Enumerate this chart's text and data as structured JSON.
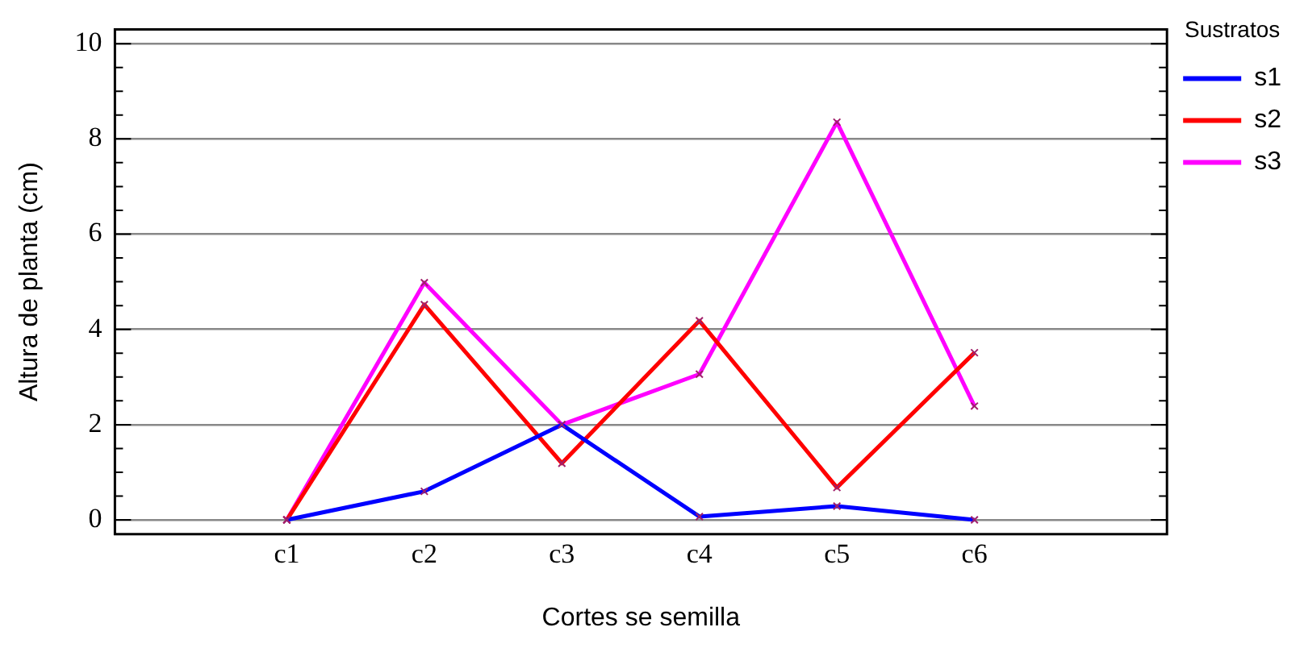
{
  "chart_data": {
    "type": "line",
    "xlabel": "Cortes se semilla",
    "ylabel": "Altura de planta (cm)",
    "legend_title": "Sustratos",
    "categories": [
      "c1",
      "c2",
      "c3",
      "c4",
      "c5",
      "c6"
    ],
    "series": [
      {
        "name": "s1",
        "color": "#0000ff",
        "values": [
          0,
          0.6,
          2.0,
          0.07,
          0.29,
          0
        ]
      },
      {
        "name": "s2",
        "color": "#ff0000",
        "values": [
          0,
          4.52,
          1.19,
          4.18,
          0.68,
          3.51
        ]
      },
      {
        "name": "s3",
        "color": "#ff00ff",
        "values": [
          0,
          4.98,
          2.0,
          3.06,
          8.35,
          2.39
        ]
      }
    ],
    "ylim": [
      -0.3,
      10.3
    ],
    "yticks": [
      0,
      2,
      4,
      6,
      8,
      10
    ],
    "grid": "y",
    "legend": "top right",
    "marker": "cross",
    "line_style": "solid"
  }
}
